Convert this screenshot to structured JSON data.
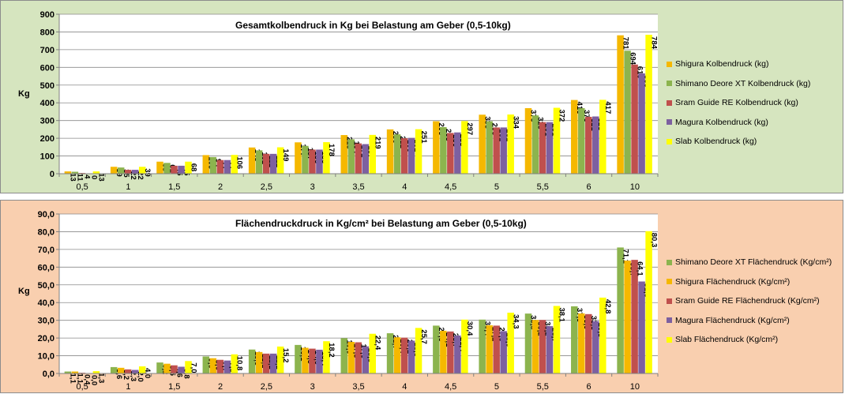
{
  "chart_data": [
    {
      "type": "bar",
      "title": "Gesamtkolbendruck in Kg bei Belastung am Geber (0,5-10kg)",
      "ylabel": "Kg",
      "xlabel": "",
      "ylim": [
        0,
        900
      ],
      "yticks": [
        "0",
        "100",
        "200",
        "300",
        "400",
        "500",
        "600",
        "700",
        "800",
        "900"
      ],
      "grid": true,
      "legend_position": "right",
      "categories": [
        "0,5",
        "1",
        "1,5",
        "2",
        "2,5",
        "3",
        "3,5",
        "4",
        "4,5",
        "5",
        "5,5",
        "6",
        "10"
      ],
      "series": [
        {
          "name": "Shigura Kolbendruck (kg)",
          "color": "#f5b800",
          "values": [
            13,
            39,
            68,
            105,
            148,
            177,
            218,
            250,
            296,
            333,
            370,
            416,
            781
          ],
          "labels": [
            "13",
            "39",
            "68",
            "105",
            "148",
            "177",
            "218",
            "250",
            "296",
            "333",
            "370",
            "416",
            "781"
          ]
        },
        {
          "name": "Shimano Deore XT Kolbendruck (kg)",
          "color": "#8cb44e",
          "values": [
            11,
            35,
            61,
            94,
            132,
            157,
            194,
            222,
            263,
            296,
            329,
            370,
            694
          ],
          "labels": [
            "11",
            "35",
            "61",
            "94",
            "132",
            "157",
            "194",
            "222",
            "263",
            "296",
            "329",
            "370",
            "694"
          ]
        },
        {
          "name": "Sram Guide RE Kolbendruck (kg)",
          "color": "#c0504d",
          "values": [
            4,
            22,
            45,
            77,
            112,
            136,
            171,
            200,
            230,
            261,
            291,
            321,
            616
          ],
          "labels": [
            "4",
            "22",
            "45",
            "77",
            "112",
            "136",
            "171",
            "200",
            "230",
            "261",
            "291",
            "321",
            "616"
          ]
        },
        {
          "name": "Magura Kolbendruck (kg)",
          "color": "#7d60a0",
          "values": [
            0,
            22,
            45,
            77,
            112,
            136,
            167,
            202,
            233,
            261,
            291,
            323,
            566
          ],
          "labels": [
            "0",
            "22",
            "45",
            "77",
            "112",
            "136",
            "167",
            "202",
            "233",
            "261",
            "291",
            "323",
            "566"
          ]
        },
        {
          "name": "Slab Kolbendruck (kg)",
          "color": "#ffff00",
          "values": [
            13,
            39,
            68,
            106,
            149,
            178,
            219,
            251,
            297,
            334,
            372,
            417,
            784
          ],
          "labels": [
            "13",
            "39",
            "68",
            "106",
            "149",
            "178",
            "219",
            "251",
            "297",
            "334",
            "372",
            "417",
            "784"
          ]
        }
      ]
    },
    {
      "type": "bar",
      "title": "Flächendruckdruck in Kg/cm² bei Belastung am Geber (0,5-10kg)",
      "ylabel": "Kg",
      "xlabel": "",
      "ylim": [
        0,
        90
      ],
      "yticks": [
        "0,0",
        "10,0",
        "20,0",
        "30,0",
        "40,0",
        "50,0",
        "60,0",
        "70,0",
        "80,0",
        "90,0"
      ],
      "grid": true,
      "legend_position": "right",
      "categories": [
        "0,5",
        "1",
        "1,5",
        "2",
        "2,5",
        "3",
        "3,5",
        "4",
        "4,5",
        "5",
        "5,5",
        "6",
        "10"
      ],
      "series": [
        {
          "name": "Shimano Deore XT Flächendruck (Kg/cm²)",
          "color": "#8cb44e",
          "values": [
            1.1,
            3.6,
            6.2,
            9.6,
            13.5,
            16.1,
            19.9,
            22.7,
            27.0,
            30.4,
            33.8,
            37.9,
            71.1
          ],
          "labels": [
            "1,1",
            "3,6",
            "6,2",
            "9,6",
            "13,5",
            "16,1",
            "19,9",
            "22,7",
            "27,0",
            "30,4",
            "33,8",
            "37,9",
            "71,1"
          ]
        },
        {
          "name": "Shigura Flächendruck (Kg/cm²)",
          "color": "#f5b800",
          "values": [
            1.1,
            3.2,
            5.5,
            8.6,
            12.1,
            14.5,
            17.8,
            20.4,
            24.1,
            27.2,
            30.2,
            33.9,
            63.7
          ],
          "labels": [
            "1,1",
            "3,2",
            "5,5",
            "8,6",
            "12,1",
            "14,5",
            "17,8",
            "20,4",
            "24,1",
            "27,2",
            "30,2",
            "33,9",
            "63,7"
          ]
        },
        {
          "name": "Sram Guide RE Flächendruck (Kg/cm²)",
          "color": "#c0504d",
          "values": [
            0.4,
            2.3,
            4.6,
            7.7,
            11.2,
            14.0,
            17.6,
            20.2,
            23.7,
            27.0,
            30.2,
            33.5,
            64.1
          ],
          "labels": [
            "0,4",
            "2,3",
            "4,6",
            "7,7",
            "11,2",
            "14,0",
            "17,6",
            "20,2",
            "23,7",
            "27,0",
            "30,2",
            "33,5",
            "64,1"
          ]
        },
        {
          "name": "Magura Flächendruck (Kg/cm²)",
          "color": "#7d60a0",
          "values": [
            0.0,
            2.0,
            3.8,
            7.3,
            11.2,
            13.4,
            15.3,
            18.5,
            21.4,
            23.9,
            26.7,
            29.5,
            51.9
          ],
          "labels": [
            "0,0",
            "2,0",
            "3,8",
            "7,3",
            "11,2",
            "13,4",
            "15,3",
            "18,5",
            "21,4",
            "23,9",
            "26,7",
            "29,5",
            "51,9"
          ]
        },
        {
          "name": "Slab Flächendruck (Kg/cm²)",
          "color": "#ffff00",
          "values": [
            1.3,
            4.0,
            7.0,
            10.8,
            15.2,
            18.2,
            22.4,
            25.7,
            30.4,
            34.3,
            38.1,
            42.8,
            80.3
          ],
          "labels": [
            "1,3",
            "4,0",
            "7,0",
            "10,8",
            "15,2",
            "18,2",
            "22,4",
            "25,7",
            "30,4",
            "34,3",
            "38,1",
            "42,8",
            "80,3"
          ]
        }
      ]
    }
  ]
}
